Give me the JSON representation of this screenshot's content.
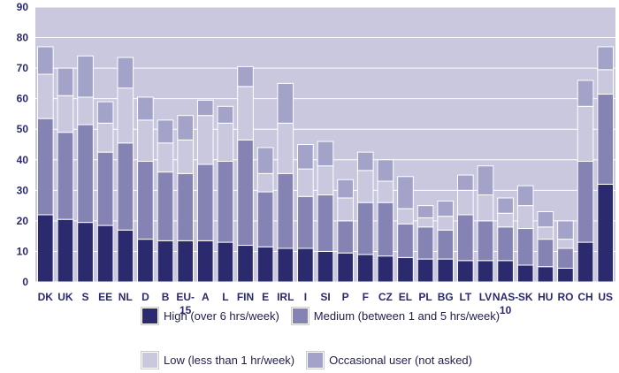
{
  "chart_data": {
    "type": "bar",
    "stacked": true,
    "title": "",
    "xlabel": "",
    "ylabel": "",
    "ylim": [
      0,
      90
    ],
    "yticks": [
      0,
      10,
      20,
      30,
      40,
      50,
      60,
      70,
      80,
      90
    ],
    "grid": true,
    "legend_position": "bottom",
    "categories": [
      "DK",
      "UK",
      "S",
      "EE",
      "NL",
      "D",
      "B",
      "EU-15",
      "A",
      "L",
      "FIN",
      "E",
      "IRL",
      "I",
      "SI",
      "P",
      "F",
      "CZ",
      "EL",
      "PL",
      "BG",
      "LT",
      "LV",
      "NAS-10",
      "SK",
      "HU",
      "RO",
      "CH",
      "US"
    ],
    "series": [
      {
        "name": "High (over 6 hrs/week)",
        "color": "#2b2a6e",
        "values": [
          22,
          20.5,
          19.5,
          18.5,
          17,
          14,
          13.5,
          13.5,
          13.5,
          13,
          12,
          11.5,
          11,
          11,
          10,
          9.5,
          9,
          8.5,
          8,
          7.5,
          7.5,
          7,
          7,
          7,
          5.5,
          5,
          4.5,
          13,
          32
        ]
      },
      {
        "name": "Medium (between 1 and 5 hrs/week)",
        "color": "#8483b4",
        "values": [
          31.5,
          28.5,
          32,
          24,
          28.5,
          25.5,
          22.5,
          22,
          25,
          26.5,
          34.5,
          18,
          24.5,
          17,
          18.5,
          10.5,
          17,
          17.5,
          11,
          10.5,
          9.5,
          15,
          13,
          11,
          12,
          9,
          6.5,
          26.5,
          29.5
        ]
      },
      {
        "name": "Low (less than 1 hr/week)",
        "color": "#c9c8de",
        "values": [
          14.5,
          12,
          9,
          9.5,
          18,
          13.5,
          9.5,
          11,
          16,
          12.5,
          17.5,
          6,
          16.5,
          9,
          9.5,
          7.5,
          10.5,
          7,
          5,
          3,
          4.5,
          8,
          8.5,
          4.5,
          7.5,
          4,
          3,
          18,
          8
        ]
      },
      {
        "name": "Occasional user (not asked)",
        "color": "#a3a2c8",
        "values": [
          9,
          9,
          13.5,
          7,
          10,
          7.5,
          7.5,
          8,
          5,
          5.5,
          6.5,
          8.5,
          13,
          8,
          8,
          6,
          6,
          7,
          10.5,
          4,
          5,
          5,
          9.5,
          5,
          6.5,
          5,
          6,
          8.5,
          7.5
        ]
      }
    ],
    "legend_rows": [
      [
        0,
        1
      ],
      [
        2,
        3
      ]
    ]
  }
}
